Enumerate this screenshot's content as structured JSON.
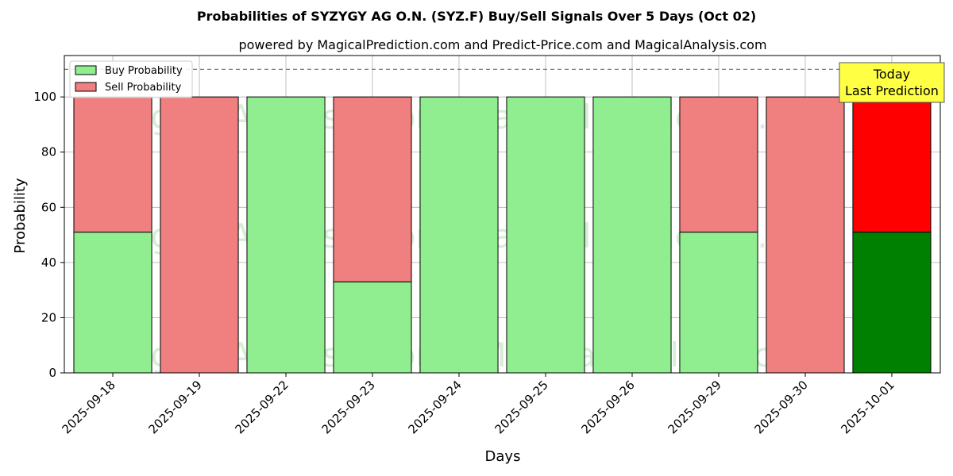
{
  "chart_data": {
    "type": "bar",
    "stacked": true,
    "title": "Probabilities of SYZYGY AG O.N. (SYZ.F) Buy/Sell Signals Over 5 Days (Oct 02)",
    "subtitle": "powered by MagicalPrediction.com and Predict-Price.com and MagicalAnalysis.com",
    "xlabel": "Days",
    "ylabel": "Probability",
    "ylim": [
      0,
      115
    ],
    "yticks": [
      0,
      20,
      40,
      60,
      80,
      100
    ],
    "grid": true,
    "legend_position": "top-left",
    "reference_line": 110,
    "categories": [
      "2025-09-18",
      "2025-09-19",
      "2025-09-22",
      "2025-09-23",
      "2025-09-24",
      "2025-09-25",
      "2025-09-26",
      "2025-09-29",
      "2025-09-30",
      "2025-10-01"
    ],
    "series": [
      {
        "name": "Buy Probability",
        "values": [
          51,
          0,
          100,
          33,
          100,
          100,
          100,
          51,
          0,
          51
        ],
        "color": "#90ee90",
        "highlight_color": "#008000"
      },
      {
        "name": "Sell Probability",
        "values": [
          49,
          100,
          0,
          67,
          0,
          0,
          0,
          49,
          100,
          49
        ],
        "color": "#f08080",
        "highlight_color": "#ff0000"
      }
    ],
    "highlight_index": 9,
    "annotation": {
      "line1": "Today",
      "line2": "Last Prediction",
      "color": "#ffff44"
    },
    "watermarks": [
      "MagicalAnalysis.com",
      "MagicalPrediction.com"
    ]
  }
}
